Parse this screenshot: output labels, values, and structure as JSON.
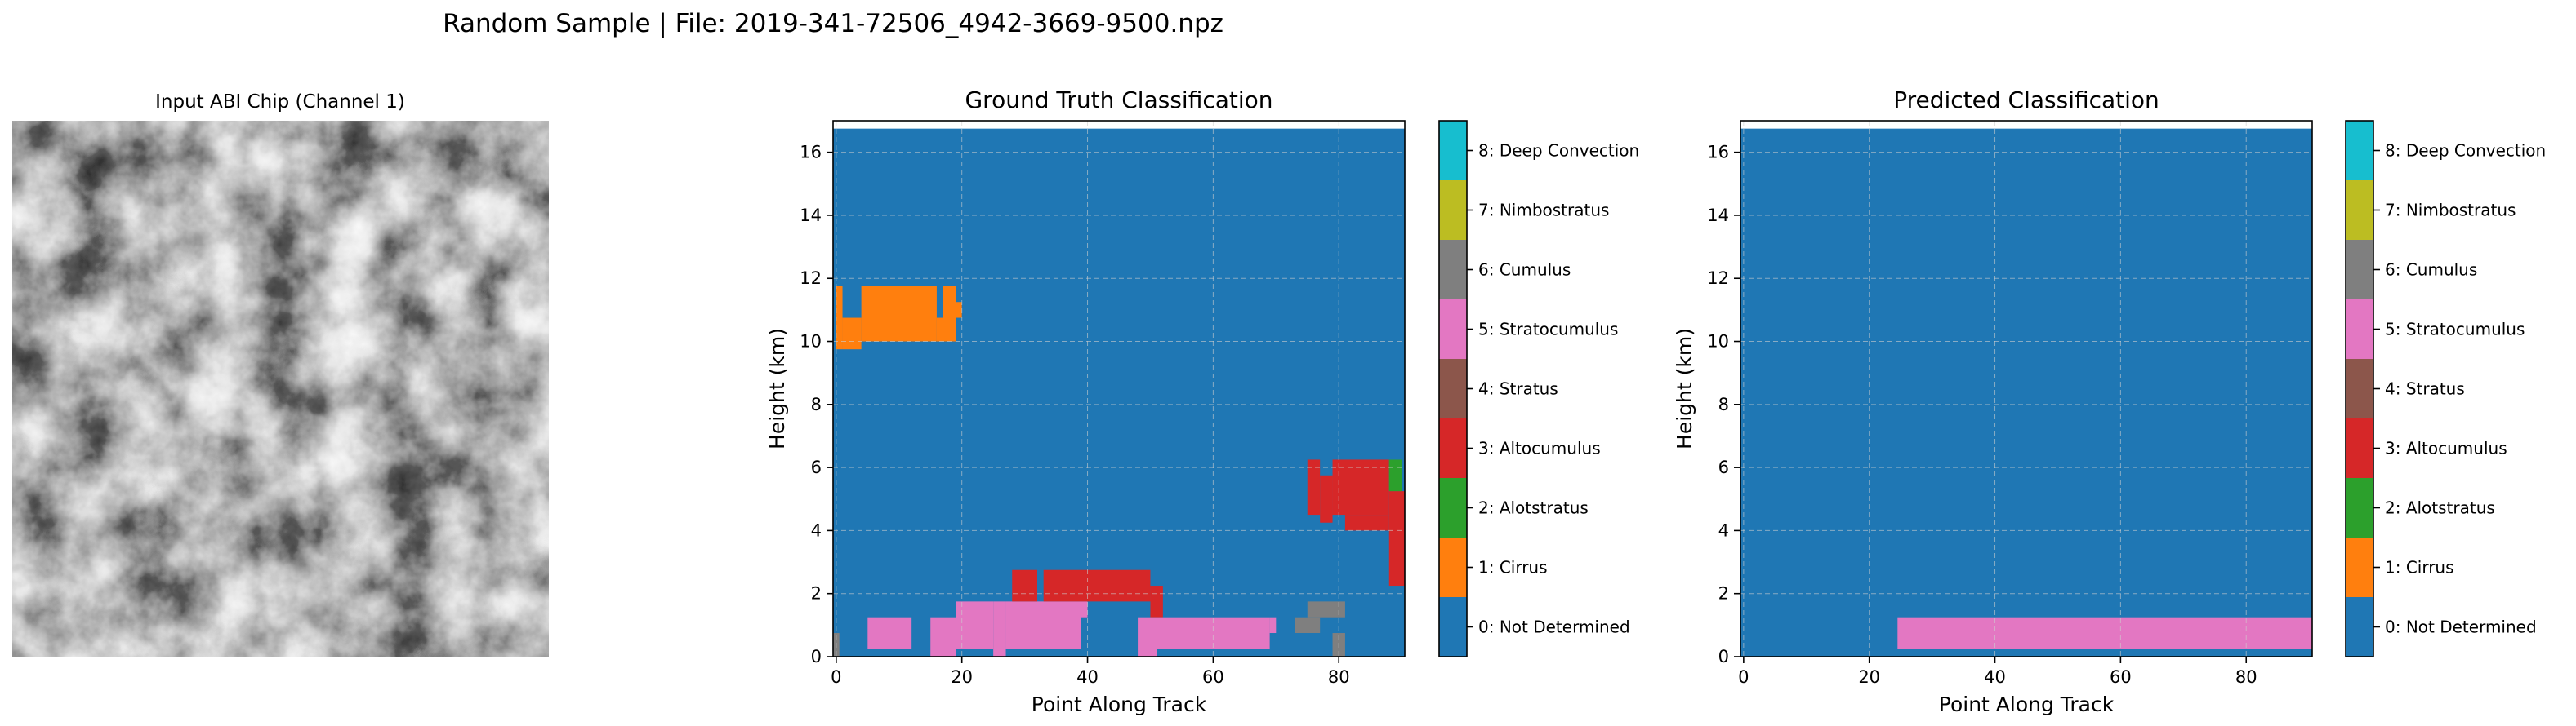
{
  "suptitle": "Random Sample | File: 2019-341-72506_4942-3669-9500.npz",
  "input_panel": {
    "title": "Input ABI Chip (Channel 1)"
  },
  "classes": [
    {
      "label": "0: Not Determined",
      "color": "#1f77b4"
    },
    {
      "label": "1: Cirrus",
      "color": "#ff7f0e"
    },
    {
      "label": "2: Alotstratus",
      "color": "#2ca02c"
    },
    {
      "label": "3: Altocumulus",
      "color": "#d62728"
    },
    {
      "label": "4: Stratus",
      "color": "#8c564b"
    },
    {
      "label": "5: Stratocumulus",
      "color": "#e377c2"
    },
    {
      "label": "6: Cumulus",
      "color": "#7f7f7f"
    },
    {
      "label": "7: Nimbostratus",
      "color": "#bcbd22"
    },
    {
      "label": "8: Deep Convection",
      "color": "#17becf"
    }
  ],
  "chart_data": [
    {
      "type": "heatmap",
      "title": "Ground Truth Classification",
      "xlabel": "Point Along Track",
      "ylabel": "Height (km)",
      "xlim": [
        -0.5,
        90.5
      ],
      "ylim": [
        0,
        17
      ],
      "data_top": 16.75,
      "xticks": [
        0,
        20,
        40,
        60,
        80
      ],
      "yticks": [
        0,
        2,
        4,
        6,
        8,
        10,
        12,
        14,
        16
      ],
      "grid": true,
      "background_class": 0,
      "regions": [
        {
          "class": 1,
          "x": [
            0,
            1
          ],
          "y": [
            9.75,
            11.75
          ]
        },
        {
          "class": 1,
          "x": [
            1,
            4
          ],
          "y": [
            9.75,
            10.75
          ]
        },
        {
          "class": 1,
          "x": [
            4,
            16
          ],
          "y": [
            10.0,
            11.75
          ]
        },
        {
          "class": 1,
          "x": [
            16,
            17
          ],
          "y": [
            10.0,
            10.75
          ]
        },
        {
          "class": 1,
          "x": [
            17,
            19
          ],
          "y": [
            10.0,
            11.75
          ]
        },
        {
          "class": 1,
          "x": [
            19,
            20
          ],
          "y": [
            10.75,
            11.25
          ]
        },
        {
          "class": 6,
          "x": [
            -0.5,
            0.5
          ],
          "y": [
            0.0,
            0.75
          ]
        },
        {
          "class": 5,
          "x": [
            5,
            12
          ],
          "y": [
            0.25,
            1.25
          ]
        },
        {
          "class": 5,
          "x": [
            15,
            19
          ],
          "y": [
            0.0,
            1.25
          ]
        },
        {
          "class": 5,
          "x": [
            19,
            25
          ],
          "y": [
            0.25,
            1.75
          ]
        },
        {
          "class": 5,
          "x": [
            25,
            27
          ],
          "y": [
            0.0,
            1.75
          ]
        },
        {
          "class": 5,
          "x": [
            27,
            39
          ],
          "y": [
            0.25,
            1.75
          ]
        },
        {
          "class": 5,
          "x": [
            39,
            40
          ],
          "y": [
            1.25,
            1.75
          ]
        },
        {
          "class": 3,
          "x": [
            28,
            32
          ],
          "y": [
            1.75,
            2.75
          ]
        },
        {
          "class": 3,
          "x": [
            33,
            50
          ],
          "y": [
            1.75,
            2.75
          ]
        },
        {
          "class": 3,
          "x": [
            50,
            52
          ],
          "y": [
            1.25,
            2.25
          ]
        },
        {
          "class": 5,
          "x": [
            48,
            51
          ],
          "y": [
            0.0,
            1.25
          ]
        },
        {
          "class": 5,
          "x": [
            51,
            69
          ],
          "y": [
            0.25,
            1.25
          ]
        },
        {
          "class": 5,
          "x": [
            69,
            70
          ],
          "y": [
            0.75,
            1.25
          ]
        },
        {
          "class": 6,
          "x": [
            73,
            77
          ],
          "y": [
            0.75,
            1.25
          ]
        },
        {
          "class": 6,
          "x": [
            75,
            81
          ],
          "y": [
            1.25,
            1.75
          ]
        },
        {
          "class": 6,
          "x": [
            79,
            81
          ],
          "y": [
            0.0,
            0.75
          ]
        },
        {
          "class": 3,
          "x": [
            75,
            77
          ],
          "y": [
            4.5,
            6.25
          ]
        },
        {
          "class": 3,
          "x": [
            77,
            79
          ],
          "y": [
            4.25,
            5.75
          ]
        },
        {
          "class": 3,
          "x": [
            79,
            88
          ],
          "y": [
            4.5,
            6.25
          ]
        },
        {
          "class": 3,
          "x": [
            81,
            88
          ],
          "y": [
            4.0,
            4.5
          ]
        },
        {
          "class": 3,
          "x": [
            88,
            90.5
          ],
          "y": [
            2.25,
            5.25
          ]
        },
        {
          "class": 2,
          "x": [
            88,
            90
          ],
          "y": [
            5.25,
            6.25
          ]
        }
      ]
    },
    {
      "type": "heatmap",
      "title": "Predicted Classification",
      "xlabel": "Point Along Track",
      "ylabel": "Height (km)",
      "xlim": [
        -0.5,
        90.5
      ],
      "ylim": [
        0,
        17
      ],
      "data_top": 16.75,
      "xticks": [
        0,
        20,
        40,
        60,
        80
      ],
      "yticks": [
        0,
        2,
        4,
        6,
        8,
        10,
        12,
        14,
        16
      ],
      "grid": true,
      "background_class": 0,
      "regions": [
        {
          "class": 5,
          "x": [
            24.5,
            90.5
          ],
          "y": [
            0.25,
            1.25
          ]
        }
      ]
    }
  ]
}
